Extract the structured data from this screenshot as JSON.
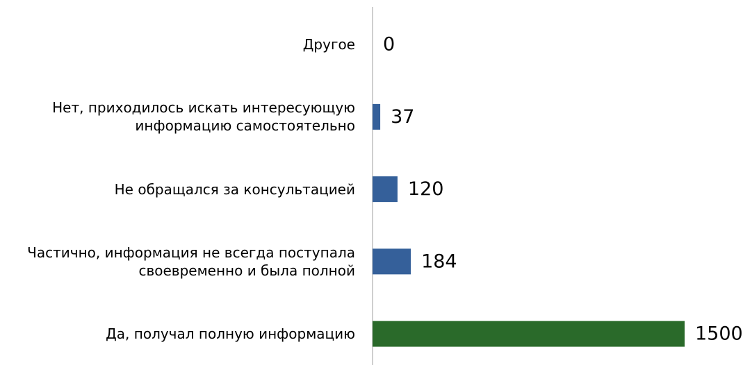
{
  "chart_data": {
    "type": "barh",
    "categories": [
      "Другое",
      "Нет, приходилось искать интересующую\nинформацию самостоятельно",
      "Не обращался за консультацией",
      "Частично, информация не всегда поступала\nсвоевременно и была полной",
      "Да, получал полную информацию"
    ],
    "values": [
      0,
      37,
      120,
      184,
      1500
    ],
    "colors": [
      "#35609a",
      "#35609a",
      "#35609a",
      "#35609a",
      "#2a6a2a"
    ],
    "xlim": [
      0,
      1500
    ]
  }
}
